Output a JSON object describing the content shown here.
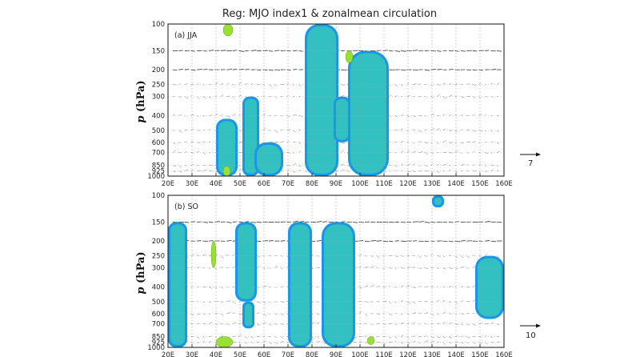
{
  "figure": {
    "title": "Reg: MJO index1 & zonalmean circulation",
    "ylabel_var": "p",
    "ylabel_unit": " (hPa)"
  },
  "chart_data": [
    {
      "type": "heatmap",
      "panel_label": "(a) JJA",
      "x_ticks": [
        "20E",
        "30E",
        "40E",
        "50E",
        "60E",
        "70E",
        "80E",
        "90E",
        "100E",
        "110E",
        "120E",
        "130E",
        "140E",
        "150E",
        "160E"
      ],
      "y_ticks": [
        "100",
        "150",
        "200",
        "250",
        "300",
        "400",
        "500",
        "600",
        "700",
        "850",
        "925",
        "1000"
      ],
      "xlim": [
        20,
        160
      ],
      "ylim_hPa": [
        1000,
        100
      ],
      "grid": "dotted",
      "reference_vector": "7",
      "colors": {
        "teal": "#33c0c0",
        "blue": "#1a96e6",
        "green": "#99e034"
      },
      "regions": [
        {
          "lon": [
            40,
            49
          ],
          "p_range": [
            420,
            1000
          ],
          "color": "blue"
        },
        {
          "lon": [
            51,
            58
          ],
          "p_range": [
            300,
            1000
          ],
          "color": "blue"
        },
        {
          "lon": [
            56,
            68
          ],
          "p_range": [
            600,
            1000
          ],
          "color": "blue"
        },
        {
          "lon": [
            77,
            91
          ],
          "p_range": [
            100,
            1000
          ],
          "color": "blue"
        },
        {
          "lon": [
            89,
            96
          ],
          "p_range": [
            300,
            600
          ],
          "color": "blue"
        },
        {
          "lon": [
            95,
            112
          ],
          "p_range": [
            150,
            1000
          ],
          "color": "blue"
        },
        {
          "lon": [
            43,
            47
          ],
          "p_range": [
            100,
            120
          ],
          "color": "green"
        },
        {
          "lon": [
            94,
            97
          ],
          "p_range": [
            150,
            180
          ],
          "color": "green"
        },
        {
          "lon": [
            43,
            46
          ],
          "p_range": [
            860,
            1000
          ],
          "color": "green"
        }
      ]
    },
    {
      "type": "heatmap",
      "panel_label": "(b) SO",
      "x_ticks": [
        "20E",
        "30E",
        "40E",
        "50E",
        "60E",
        "70E",
        "80E",
        "90E",
        "100E",
        "110E",
        "120E",
        "130E",
        "140E",
        "150E",
        "160E"
      ],
      "y_ticks": [
        "100",
        "150",
        "200",
        "250",
        "300",
        "400",
        "500",
        "600",
        "700",
        "850",
        "925",
        "1000"
      ],
      "xlim": [
        20,
        160
      ],
      "ylim_hPa": [
        1000,
        100
      ],
      "grid": "dotted",
      "reference_vector": "10",
      "colors": {
        "teal": "#33c0c0",
        "blue": "#1a96e6",
        "green": "#99e034"
      },
      "regions": [
        {
          "lon": [
            20,
            28
          ],
          "p_range": [
            150,
            1000
          ],
          "color": "blue"
        },
        {
          "lon": [
            48,
            57
          ],
          "p_range": [
            150,
            500
          ],
          "color": "blue"
        },
        {
          "lon": [
            51,
            56
          ],
          "p_range": [
            500,
            750
          ],
          "color": "blue"
        },
        {
          "lon": [
            70,
            80
          ],
          "p_range": [
            150,
            1000
          ],
          "color": "blue"
        },
        {
          "lon": [
            84,
            98
          ],
          "p_range": [
            150,
            1000
          ],
          "color": "blue"
        },
        {
          "lon": [
            130,
            135
          ],
          "p_range": [
            100,
            120
          ],
          "color": "blue"
        },
        {
          "lon": [
            148,
            160
          ],
          "p_range": [
            250,
            650
          ],
          "color": "blue"
        },
        {
          "lon": [
            40,
            47
          ],
          "p_range": [
            850,
            1000
          ],
          "color": "green"
        },
        {
          "lon": [
            38,
            40
          ],
          "p_range": [
            200,
            300
          ],
          "color": "green"
        },
        {
          "lon": [
            103,
            106
          ],
          "p_range": [
            850,
            960
          ],
          "color": "green"
        }
      ]
    }
  ]
}
